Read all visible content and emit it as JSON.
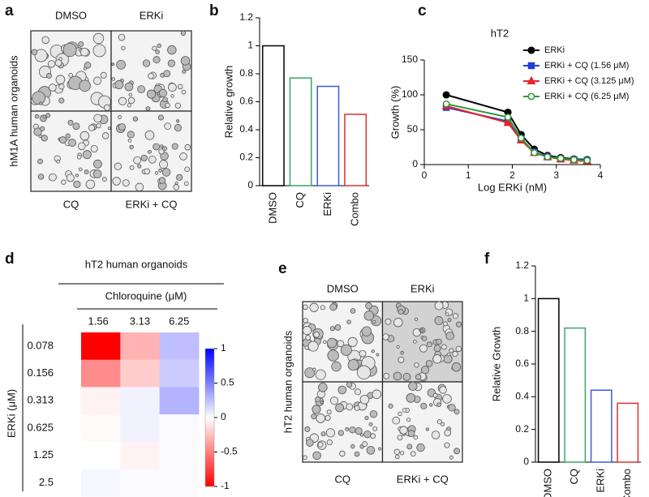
{
  "figures": [
    {
      "panel": "a",
      "ylabel": "hM1A human organoids",
      "labels_top": [
        "DMSO",
        "ERKi"
      ],
      "labels_bottom": [
        "CQ",
        "ERKi + CQ"
      ]
    },
    {
      "panel": "e",
      "ylabel": "hT2 human organoids",
      "labels_top": [
        "DMSO",
        "ERKi"
      ],
      "labels_bottom": [
        "CQ",
        "ERKi + CQ"
      ]
    }
  ],
  "chart_data": [
    {
      "type": "bar",
      "panel": "b",
      "ylabel": "Relative growth",
      "categories": [
        "DMSO",
        "CQ",
        "ERKi",
        "Combo"
      ],
      "values": [
        1,
        0.77,
        0.71,
        0.51
      ],
      "colors": [
        "#000000",
        "#3aa46a",
        "#3b5bdb",
        "#e03030"
      ],
      "ylim": [
        0,
        1.2
      ],
      "yticks": [
        0,
        0.2,
        0.4,
        0.6,
        0.8,
        1,
        1.2
      ]
    },
    {
      "type": "line",
      "panel": "c",
      "title": "hT2",
      "xlabel": "Log ERKi (nM)",
      "ylabel": "Growth (%)",
      "x": [
        0.5,
        1.9,
        2.2,
        2.5,
        2.8,
        3.1,
        3.4,
        3.7
      ],
      "series": [
        {
          "name": "ERKi",
          "color": "#000000",
          "marker": "circle",
          "values": [
            100,
            75,
            43,
            22,
            13,
            10,
            8,
            7
          ]
        },
        {
          "name": "ERKi + CQ (1.56 μM)",
          "color": "#1f3fd6",
          "marker": "square",
          "values": [
            82,
            62,
            36,
            18,
            11,
            8,
            7,
            6
          ]
        },
        {
          "name": "ERKi + CQ (3.125 μM)",
          "color": "#e8222a",
          "marker": "triangle",
          "values": [
            84,
            60,
            35,
            17,
            11,
            8,
            6,
            5
          ]
        },
        {
          "name": "ERKi + CQ (6.25 μM)",
          "color": "#2e9a3a",
          "marker": "open-circle",
          "values": [
            87,
            68,
            38,
            17,
            11,
            9,
            7,
            6
          ]
        }
      ],
      "xlim": [
        0,
        4
      ],
      "xticks": [
        0,
        1,
        2,
        3,
        4
      ],
      "ylim": [
        0,
        150
      ],
      "yticks": [
        0,
        50,
        100,
        150
      ]
    },
    {
      "type": "heatmap",
      "panel": "d",
      "title": "hT2 human organoids",
      "xlabel": "Chloroquine (μM)",
      "ylabel": "ERKi (μM)",
      "categories": [
        "1.56",
        "3.13",
        "6.25"
      ],
      "rows": [
        "0.078",
        "0.156",
        "0.313",
        "0.625",
        "1.25",
        "2.5"
      ],
      "values": [
        [
          -1,
          -0.3,
          0.25
        ],
        [
          -0.45,
          -0.2,
          0.2
        ],
        [
          -0.05,
          0.05,
          0.3
        ],
        [
          -0.02,
          0.05,
          0.02
        ],
        [
          0,
          -0.05,
          0.02
        ],
        [
          0.03,
          0.02,
          0.02
        ]
      ],
      "colormap": [
        "#ff0000",
        "#ffffff",
        "#0000ff"
      ],
      "zlim": [
        -1,
        1
      ],
      "zticks": [
        -1,
        -0.5,
        0,
        0.5,
        1
      ]
    },
    {
      "type": "bar",
      "panel": "f",
      "ylabel": "Relative Growth",
      "categories": [
        "DMSO",
        "CQ",
        "ERKi",
        "Combo"
      ],
      "values": [
        1,
        0.82,
        0.44,
        0.36
      ],
      "colors": [
        "#000000",
        "#3aa46a",
        "#3b5bdb",
        "#e03030"
      ],
      "ylim": [
        0,
        1.2
      ],
      "yticks": [
        0,
        0.2,
        0.4,
        0.6,
        0.8,
        1,
        1.2
      ]
    }
  ]
}
